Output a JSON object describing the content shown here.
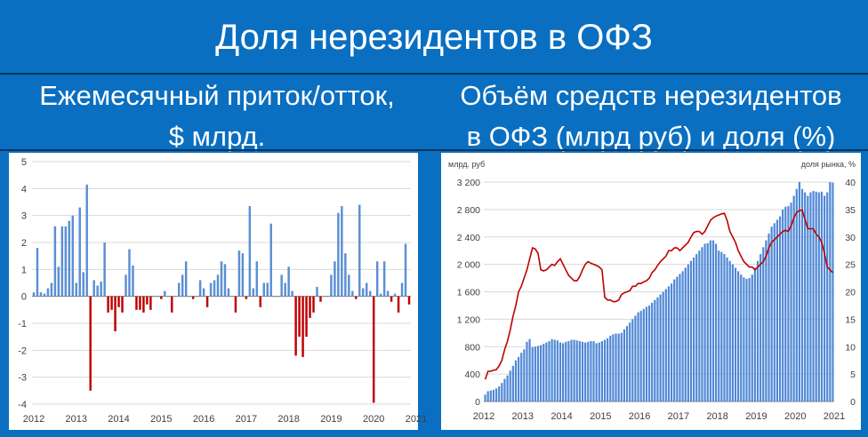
{
  "header": {
    "title": "Доля нерезидентов в ОФЗ",
    "left_subtitle": [
      "Ежемесячный приток/отток,",
      "$ млрд."
    ],
    "right_subtitle": [
      "Объём средств нерезидентов",
      "в ОФЗ (млрд руб) и доля (%)"
    ]
  },
  "colors": {
    "background": "#0a6fc0",
    "bar_positive": "#5b8fd4",
    "bar_negative": "#c00000",
    "line": "#c00000",
    "bar_stock": "#4f88d6"
  },
  "chart_data": [
    {
      "type": "bar",
      "x_tick_labels": [
        "2012",
        "2013",
        "2014",
        "2015",
        "2016",
        "2017",
        "2018",
        "2019",
        "2020",
        "2021"
      ],
      "y_tick_labels": [
        "5",
        "4",
        "3",
        "2",
        "1",
        "0",
        "-1",
        "-2",
        "-3",
        "-4"
      ],
      "ylim": [
        -4,
        5
      ],
      "values": [
        0.15,
        1.8,
        0.15,
        0.1,
        0.3,
        0.5,
        2.6,
        1.1,
        2.6,
        2.6,
        2.8,
        3.0,
        0.5,
        3.3,
        0.9,
        4.15,
        -3.5,
        0.6,
        0.4,
        0.55,
        2.0,
        -0.6,
        -0.5,
        -1.3,
        -0.4,
        -0.6,
        0.8,
        1.75,
        1.15,
        -0.5,
        -0.5,
        -0.6,
        -0.3,
        -0.5,
        0.0,
        0.0,
        -0.1,
        0.2,
        0.0,
        -0.6,
        0.0,
        0.5,
        0.8,
        1.3,
        0.0,
        -0.1,
        0.0,
        0.6,
        0.3,
        -0.4,
        0.5,
        0.6,
        0.8,
        1.3,
        1.2,
        0.3,
        0.0,
        -0.6,
        1.7,
        1.6,
        -0.1,
        3.35,
        0.3,
        1.3,
        -0.4,
        0.5,
        0.5,
        2.7,
        0.0,
        0.0,
        0.8,
        0.5,
        1.1,
        0.2,
        -2.2,
        -1.5,
        -2.25,
        -1.5,
        -0.8,
        -0.6,
        0.35,
        -0.2,
        0.0,
        0.0,
        0.8,
        1.3,
        3.1,
        3.35,
        1.6,
        0.8,
        0.2,
        -0.1,
        3.4,
        0.3,
        0.5,
        0.2,
        -3.95,
        1.3,
        0.1,
        1.3,
        0.2,
        -0.2,
        0.1,
        -0.6,
        0.5,
        1.95,
        -0.3
      ]
    },
    {
      "type": "bar+line",
      "left_axis_label": "млрд. руб",
      "right_axis_label": "доля рынка, %",
      "x_tick_labels": [
        "2012",
        "2013",
        "2014",
        "2015",
        "2016",
        "2017",
        "2018",
        "2019",
        "2020",
        "2021"
      ],
      "y_left_tick_labels": [
        "3 200",
        "2 800",
        "2 400",
        "2 000",
        "1 600",
        "1 200",
        "800",
        "400",
        "0"
      ],
      "y_right_tick_labels": [
        "40",
        "35",
        "30",
        "25",
        "20",
        "15",
        "10",
        "5",
        "0"
      ],
      "ylim_left": [
        0,
        3200
      ],
      "ylim_right": [
        0,
        40
      ],
      "series": [
        {
          "values": [
            100,
            150,
            160,
            170,
            190,
            220,
            270,
            330,
            380,
            450,
            520,
            600,
            650,
            710,
            760,
            870,
            910,
            790,
            800,
            810,
            820,
            840,
            860,
            880,
            910,
            900,
            890,
            860,
            850,
            870,
            880,
            900,
            900,
            890,
            880,
            870,
            860,
            870,
            880,
            880,
            850,
            860,
            880,
            900,
            920,
            960,
            980,
            990,
            990,
            1000,
            1050,
            1100,
            1150,
            1200,
            1250,
            1300,
            1320,
            1350,
            1380,
            1400,
            1440,
            1480,
            1520,
            1560,
            1600,
            1640,
            1680,
            1720,
            1780,
            1820,
            1860,
            1900,
            1950,
            2000,
            2050,
            2100,
            2150,
            2200,
            2250,
            2300,
            2310,
            2350,
            2350,
            2300,
            2200,
            2180,
            2150,
            2100,
            2050,
            2000,
            1950,
            1900,
            1850,
            1810,
            1790,
            1800,
            1850,
            1950,
            2050,
            2150,
            2250,
            2350,
            2450,
            2550,
            2600,
            2650,
            2700,
            2800,
            2840,
            2850,
            2900,
            3000,
            3100,
            3200,
            3100,
            3050,
            3000,
            3050,
            3070,
            3060,
            3050,
            3060,
            3000,
            3050,
            3200,
            3190
          ]
        },
        {
          "values": [
            4,
            5.5,
            5.5,
            5.7,
            5.8,
            6.5,
            7.5,
            9.5,
            11,
            13,
            15.5,
            17.5,
            20,
            21,
            22.5,
            24,
            26,
            28,
            27.8,
            27,
            24,
            23.8,
            24,
            24.5,
            25,
            24.8,
            25.5,
            26,
            25,
            24,
            23,
            22.5,
            22,
            22,
            22.8,
            24,
            25,
            25.5,
            25.2,
            25,
            24.8,
            24.5,
            24,
            19,
            18.5,
            18.5,
            18.2,
            18.2,
            18.5,
            19.5,
            19.8,
            20,
            20.2,
            21,
            21,
            21.5,
            21.5,
            21.8,
            22,
            22.5,
            23.5,
            24,
            24.8,
            25.5,
            26,
            26.5,
            27.5,
            27.5,
            28,
            28,
            27.5,
            28,
            28.5,
            29,
            30,
            30.8,
            31,
            31,
            30.5,
            31,
            32,
            33,
            33.5,
            33.8,
            34,
            34.2,
            34.3,
            33,
            31,
            30,
            29,
            27.5,
            26.5,
            25.5,
            25,
            24.5,
            24.5,
            24,
            24.5,
            25,
            25.5,
            26.5,
            28,
            29,
            29.5,
            30,
            30.5,
            31,
            31.2,
            31,
            32,
            33.5,
            34.5,
            34.8,
            34.9,
            33.2,
            31.5,
            31.5,
            31.5,
            30.5,
            30,
            29,
            27,
            24.5,
            24,
            23.5
          ]
        }
      ]
    }
  ]
}
